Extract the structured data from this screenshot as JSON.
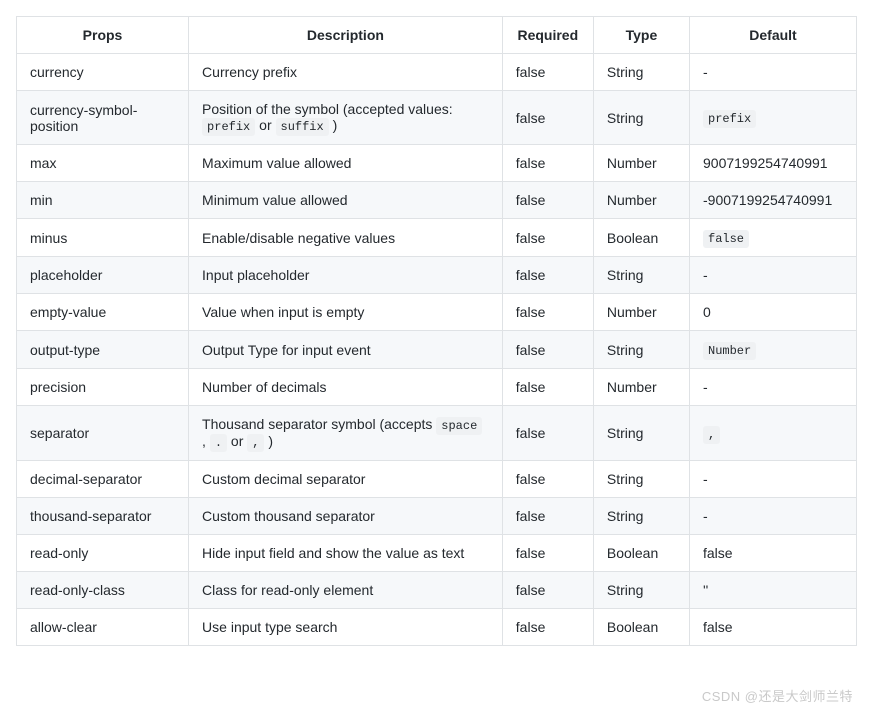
{
  "table": {
    "columns": [
      "Props",
      "Description",
      "Required",
      "Type",
      "Default"
    ],
    "rows": [
      {
        "prop": "currency",
        "desc": [
          {
            "t": "text",
            "v": "Currency prefix"
          }
        ],
        "required": "false",
        "type": "String",
        "default": [
          {
            "t": "text",
            "v": "-"
          }
        ]
      },
      {
        "prop": "currency-symbol-position",
        "desc": [
          {
            "t": "text",
            "v": "Position of the symbol (accepted values: "
          },
          {
            "t": "code",
            "v": "prefix"
          },
          {
            "t": "text",
            "v": " or "
          },
          {
            "t": "code",
            "v": "suffix"
          },
          {
            "t": "text",
            "v": " )"
          }
        ],
        "required": "false",
        "type": "String",
        "default": [
          {
            "t": "code",
            "v": "prefix"
          }
        ]
      },
      {
        "prop": "max",
        "desc": [
          {
            "t": "text",
            "v": "Maximum value allowed"
          }
        ],
        "required": "false",
        "type": "Number",
        "default": [
          {
            "t": "text",
            "v": "9007199254740991"
          }
        ]
      },
      {
        "prop": "min",
        "desc": [
          {
            "t": "text",
            "v": "Minimum value allowed"
          }
        ],
        "required": "false",
        "type": "Number",
        "default": [
          {
            "t": "text",
            "v": "-9007199254740991"
          }
        ]
      },
      {
        "prop": "minus",
        "desc": [
          {
            "t": "text",
            "v": "Enable/disable negative values"
          }
        ],
        "required": "false",
        "type": "Boolean",
        "default": [
          {
            "t": "code",
            "v": "false"
          }
        ]
      },
      {
        "prop": "placeholder",
        "desc": [
          {
            "t": "text",
            "v": "Input placeholder"
          }
        ],
        "required": "false",
        "type": "String",
        "default": [
          {
            "t": "text",
            "v": "-"
          }
        ]
      },
      {
        "prop": "empty-value",
        "desc": [
          {
            "t": "text",
            "v": "Value when input is empty"
          }
        ],
        "required": "false",
        "type": "Number",
        "default": [
          {
            "t": "text",
            "v": "0"
          }
        ]
      },
      {
        "prop": "output-type",
        "desc": [
          {
            "t": "text",
            "v": "Output Type for input event"
          }
        ],
        "required": "false",
        "type": "String",
        "default": [
          {
            "t": "code",
            "v": "Number"
          }
        ]
      },
      {
        "prop": "precision",
        "desc": [
          {
            "t": "text",
            "v": "Number of decimals"
          }
        ],
        "required": "false",
        "type": "Number",
        "default": [
          {
            "t": "text",
            "v": "-"
          }
        ]
      },
      {
        "prop": "separator",
        "desc": [
          {
            "t": "text",
            "v": "Thousand separator symbol (accepts "
          },
          {
            "t": "code",
            "v": "space"
          },
          {
            "t": "text",
            "v": " , "
          },
          {
            "t": "code",
            "v": "."
          },
          {
            "t": "text",
            "v": " or "
          },
          {
            "t": "code",
            "v": ","
          },
          {
            "t": "text",
            "v": " )"
          }
        ],
        "required": "false",
        "type": "String",
        "default": [
          {
            "t": "code",
            "v": ","
          }
        ]
      },
      {
        "prop": "decimal-separator",
        "desc": [
          {
            "t": "text",
            "v": "Custom decimal separator"
          }
        ],
        "required": "false",
        "type": "String",
        "default": [
          {
            "t": "text",
            "v": "-"
          }
        ]
      },
      {
        "prop": "thousand-separator",
        "desc": [
          {
            "t": "text",
            "v": "Custom thousand separator"
          }
        ],
        "required": "false",
        "type": "String",
        "default": [
          {
            "t": "text",
            "v": "-"
          }
        ]
      },
      {
        "prop": "read-only",
        "desc": [
          {
            "t": "text",
            "v": "Hide input field and show the value as text"
          }
        ],
        "required": "false",
        "type": "Boolean",
        "default": [
          {
            "t": "text",
            "v": "false"
          }
        ]
      },
      {
        "prop": "read-only-class",
        "desc": [
          {
            "t": "text",
            "v": "Class for read-only element"
          }
        ],
        "required": "false",
        "type": "String",
        "default": [
          {
            "t": "text",
            "v": "''"
          }
        ]
      },
      {
        "prop": "allow-clear",
        "desc": [
          {
            "t": "text",
            "v": "Use input type search"
          }
        ],
        "required": "false",
        "type": "Boolean",
        "default": [
          {
            "t": "text",
            "v": "false"
          }
        ]
      }
    ]
  },
  "watermark": "CSDN @还是大剑师兰特"
}
